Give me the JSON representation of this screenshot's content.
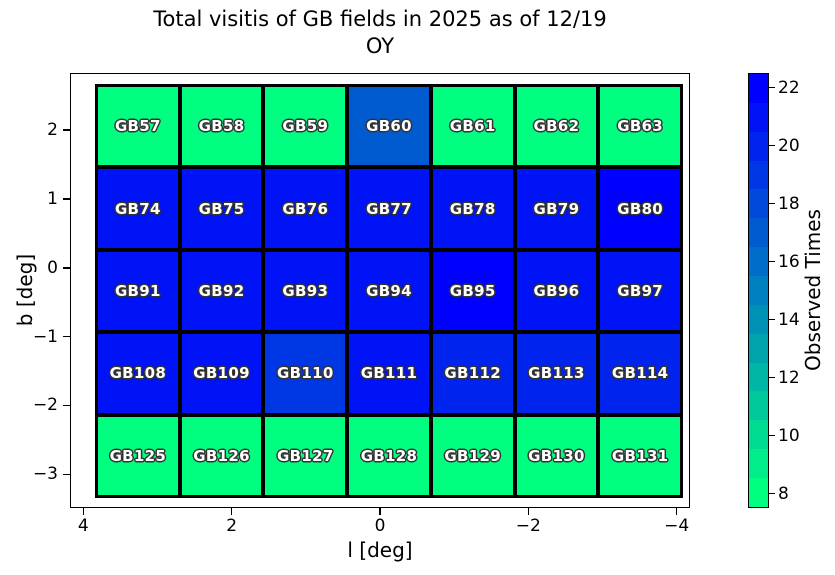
{
  "figure": {
    "title_line1": "Total visitis of GB fields in 2025 as of 12/19",
    "title_line2": "OY"
  },
  "chart_data": {
    "type": "heatmap",
    "title": "Total visitis of GB fields in 2025 as of 12/19 OY",
    "xlabel": "l [deg]",
    "ylabel": "b [deg]",
    "colorbar_label": "Observed Times",
    "colormap": "winter_r",
    "grid_shape": {
      "rows": 5,
      "cols": 7
    },
    "xlim": [
      4.18,
      -4.18
    ],
    "ylim": [
      2.83,
      -3.49
    ],
    "value_range": [
      7.5,
      22.5
    ],
    "xticks": [
      {
        "label": "4",
        "value": 4
      },
      {
        "label": "2",
        "value": 2
      },
      {
        "label": "0",
        "value": 0
      },
      {
        "label": "−2",
        "value": -2
      },
      {
        "label": "−4",
        "value": -4
      }
    ],
    "yticks": [
      {
        "label": "2",
        "value": 2
      },
      {
        "label": "1",
        "value": 1
      },
      {
        "label": "0",
        "value": 0
      },
      {
        "label": "−1",
        "value": -1
      },
      {
        "label": "−2",
        "value": -2
      },
      {
        "label": "−3",
        "value": -3
      }
    ],
    "colorbar_ticks": [
      {
        "label": "8",
        "value": 8
      },
      {
        "label": "10",
        "value": 10
      },
      {
        "label": "12",
        "value": 12
      },
      {
        "label": "14",
        "value": 14
      },
      {
        "label": "16",
        "value": 16
      },
      {
        "label": "18",
        "value": 18
      },
      {
        "label": "20",
        "value": 20
      },
      {
        "label": "22",
        "value": 22
      }
    ],
    "rows": [
      {
        "fields": [
          {
            "label": "GB57",
            "value": 8
          },
          {
            "label": "GB58",
            "value": 8
          },
          {
            "label": "GB59",
            "value": 8
          },
          {
            "label": "GB60",
            "value": 17
          },
          {
            "label": "GB61",
            "value": 8
          },
          {
            "label": "GB62",
            "value": 8
          },
          {
            "label": "GB63",
            "value": 8
          }
        ]
      },
      {
        "fields": [
          {
            "label": "GB74",
            "value": 21
          },
          {
            "label": "GB75",
            "value": 21
          },
          {
            "label": "GB76",
            "value": 21
          },
          {
            "label": "GB77",
            "value": 21
          },
          {
            "label": "GB78",
            "value": 21
          },
          {
            "label": "GB79",
            "value": 21
          },
          {
            "label": "GB80",
            "value": 22
          }
        ]
      },
      {
        "fields": [
          {
            "label": "GB91",
            "value": 21
          },
          {
            "label": "GB92",
            "value": 21
          },
          {
            "label": "GB93",
            "value": 21
          },
          {
            "label": "GB94",
            "value": 21
          },
          {
            "label": "GB95",
            "value": 22
          },
          {
            "label": "GB96",
            "value": 21
          },
          {
            "label": "GB97",
            "value": 21
          }
        ]
      },
      {
        "fields": [
          {
            "label": "GB108",
            "value": 21
          },
          {
            "label": "GB109",
            "value": 21
          },
          {
            "label": "GB110",
            "value": 19
          },
          {
            "label": "GB111",
            "value": 21
          },
          {
            "label": "GB112",
            "value": 20
          },
          {
            "label": "GB113",
            "value": 20
          },
          {
            "label": "GB114",
            "value": 20
          }
        ]
      },
      {
        "fields": [
          {
            "label": "GB125",
            "value": 8
          },
          {
            "label": "GB126",
            "value": 8
          },
          {
            "label": "GB127",
            "value": 8
          },
          {
            "label": "GB128",
            "value": 8
          },
          {
            "label": "GB129",
            "value": 8
          },
          {
            "label": "GB130",
            "value": 8
          },
          {
            "label": "GB131",
            "value": 8
          }
        ]
      }
    ]
  }
}
